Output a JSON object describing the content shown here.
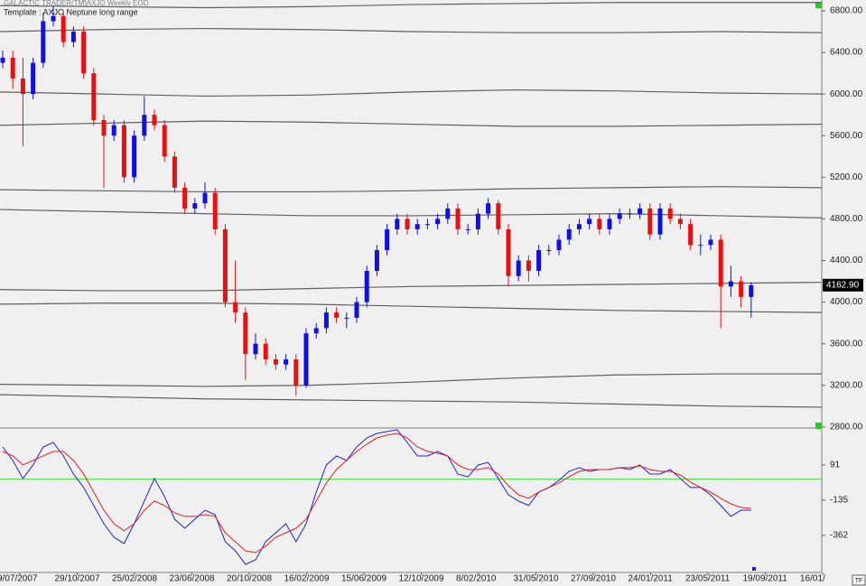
{
  "header": {
    "app": "GALACTIC TRADER(TM)",
    "symbol": "^AXJO Weekly EOD",
    "template": "Template : AXJO Neptune long range",
    "corner": "TF"
  },
  "chart_data": [
    {
      "type": "candlestick",
      "ylim": [
        2790,
        6904
      ],
      "yticks": [
        {
          "value": 2800,
          "label": "2800.00"
        },
        {
          "value": 3200,
          "label": "3200.00"
        },
        {
          "value": 3600,
          "label": "3600.00"
        },
        {
          "value": 4000,
          "label": "4000.00"
        },
        {
          "value": 4400,
          "label": "4400.00"
        },
        {
          "value": 4800,
          "label": "4800.00"
        },
        {
          "value": 5200,
          "label": "5200.00"
        },
        {
          "value": 5600,
          "label": "5600.00"
        },
        {
          "value": 6000,
          "label": "6000.00"
        },
        {
          "value": 6400,
          "label": "6400.00"
        },
        {
          "value": 6800,
          "label": "6800.00"
        }
      ],
      "xticks": [
        "9/07/2007",
        "29/10/2007",
        "25/02/2008",
        "23/06/2008",
        "20/10/2008",
        "16/02/2009",
        "15/06/2009",
        "12/10/2009",
        "8/02/2010",
        "31/05/2010",
        "27/09/2010",
        "24/01/2011",
        "23/05/2011",
        "19/09/2011",
        "16/01/"
      ],
      "up_color": "#1010e0",
      "down_color": "#e81010",
      "line_color": "#606060",
      "last_price": {
        "value": 4162.9,
        "label": "4162.90"
      },
      "open": [
        6300,
        6350,
        6150,
        6000,
        6300,
        6700,
        6750,
        6500,
        6600,
        6200,
        5750,
        5600,
        5700,
        5200,
        5600,
        5800,
        5700,
        5400,
        5100,
        4900,
        4950,
        5050,
        4700,
        4000,
        3900,
        3500,
        3600,
        3450,
        3400,
        3450,
        3200,
        3700,
        3750,
        3900,
        3850,
        3850,
        4000,
        4300,
        4500,
        4700,
        4800,
        4700,
        4750,
        4750,
        4800,
        4900,
        4700,
        4700,
        4850,
        4950,
        4700,
        4250,
        4400,
        4300,
        4500,
        4500,
        4600,
        4700,
        4750,
        4800,
        4700,
        4800,
        4850,
        4850,
        4900,
        4650,
        4900,
        4800,
        4750,
        4550,
        4550,
        4600,
        4150,
        4200,
        4050
      ],
      "high": [
        6420,
        6420,
        6350,
        6350,
        6780,
        6850,
        6780,
        6650,
        6650,
        6250,
        5800,
        5750,
        5750,
        5650,
        5980,
        5850,
        5750,
        5450,
        5150,
        5000,
        5150,
        5100,
        4750,
        4400,
        3950,
        3700,
        3650,
        3500,
        3500,
        3500,
        3750,
        3800,
        3950,
        3950,
        3900,
        4050,
        4350,
        4550,
        4750,
        4850,
        4850,
        4800,
        4800,
        4850,
        4950,
        4950,
        4750,
        4900,
        5000,
        4980,
        4750,
        4450,
        4450,
        4550,
        4550,
        4650,
        4750,
        4800,
        4850,
        4850,
        4850,
        4900,
        4900,
        4950,
        4950,
        4950,
        4950,
        4850,
        4800,
        4650,
        4650,
        4650,
        4350,
        4250,
        4190
      ],
      "low": [
        6250,
        6050,
        5500,
        5950,
        6250,
        6650,
        6450,
        6450,
        6150,
        5700,
        5100,
        5550,
        5150,
        5150,
        5550,
        5650,
        5350,
        5050,
        4850,
        4850,
        4900,
        4650,
        3950,
        3800,
        3250,
        3450,
        3400,
        3350,
        3350,
        3100,
        3180,
        3650,
        3700,
        3800,
        3750,
        3800,
        3950,
        4250,
        4450,
        4650,
        4650,
        4650,
        4700,
        4700,
        4750,
        4650,
        4650,
        4650,
        4800,
        4650,
        4150,
        4200,
        4200,
        4250,
        4450,
        4450,
        4550,
        4650,
        4700,
        4650,
        4650,
        4750,
        4800,
        4800,
        4600,
        4600,
        4750,
        4700,
        4500,
        4450,
        4500,
        3750,
        4050,
        3950,
        3850
      ],
      "close": [
        6350,
        6150,
        6000,
        6300,
        6700,
        6750,
        6500,
        6600,
        6200,
        5750,
        5600,
        5700,
        5200,
        5600,
        5800,
        5700,
        5400,
        5100,
        4900,
        4950,
        5050,
        4700,
        4000,
        3900,
        3500,
        3600,
        3450,
        3400,
        3450,
        3200,
        3700,
        3750,
        3900,
        3850,
        3850,
        4000,
        4300,
        4500,
        4700,
        4800,
        4700,
        4750,
        4750,
        4800,
        4900,
        4700,
        4700,
        4850,
        4950,
        4700,
        4250,
        4400,
        4300,
        4500,
        4500,
        4600,
        4700,
        4750,
        4800,
        4700,
        4800,
        4850,
        4850,
        4900,
        4650,
        4900,
        4800,
        4750,
        4550,
        4550,
        4600,
        4150,
        4200,
        4050,
        4162.9
      ],
      "overlay_lines": [
        {
          "values": [
            6850,
            6840,
            6830,
            6840,
            6860,
            6870,
            6880,
            6880,
            6880
          ]
        },
        {
          "values": [
            6600,
            6620,
            6630,
            6620,
            6600,
            6590,
            6590,
            6600,
            6590
          ]
        },
        {
          "values": [
            6020,
            6000,
            5980,
            5990,
            6020,
            6040,
            6030,
            6010,
            6000
          ]
        },
        {
          "values": [
            5700,
            5720,
            5740,
            5730,
            5710,
            5690,
            5690,
            5700,
            5710
          ]
        },
        {
          "values": [
            5080,
            5070,
            5060,
            5060,
            5070,
            5090,
            5100,
            5110,
            5100
          ]
        },
        {
          "values": [
            4890,
            4870,
            4850,
            4830,
            4830,
            4840,
            4850,
            4830,
            4810
          ]
        },
        {
          "values": [
            4120,
            4110,
            4110,
            4130,
            4150,
            4160,
            4170,
            4180,
            4190
          ]
        },
        {
          "values": [
            3980,
            3990,
            3990,
            3980,
            3960,
            3940,
            3920,
            3910,
            3900
          ]
        },
        {
          "values": [
            3210,
            3200,
            3190,
            3200,
            3230,
            3270,
            3300,
            3310,
            3310
          ]
        },
        {
          "values": [
            3110,
            3090,
            3070,
            3060,
            3050,
            3040,
            3020,
            3000,
            2990
          ]
        }
      ]
    },
    {
      "type": "line",
      "ylim": [
        -589,
        329
      ],
      "yticks": [
        91,
        -135,
        -362
      ],
      "hline": 0,
      "hline_color": "#40e040",
      "series": [
        {
          "color": "#2020e0",
          "values": [
            207,
            120,
            4,
            91,
            207,
            236,
            149,
            33,
            -54,
            -170,
            -287,
            -374,
            -414,
            -287,
            -141,
            4,
            -112,
            -258,
            -316,
            -258,
            -200,
            -229,
            -403,
            -461,
            -548,
            -519,
            -403,
            -345,
            -287,
            -403,
            -287,
            -83,
            91,
            149,
            120,
            207,
            265,
            294,
            306,
            318,
            236,
            149,
            149,
            178,
            149,
            33,
            15,
            91,
            108,
            4,
            -101,
            -141,
            -170,
            -83,
            -54,
            -8,
            50,
            74,
            50,
            62,
            62,
            74,
            62,
            91,
            33,
            33,
            62,
            4,
            -54,
            -54,
            -101,
            -170,
            -240,
            -200,
            -200
          ]
        },
        {
          "color": "#e02020",
          "values": [
            178,
            149,
            91,
            120,
            149,
            178,
            178,
            120,
            33,
            -83,
            -200,
            -287,
            -333,
            -287,
            -200,
            -141,
            -170,
            -217,
            -240,
            -240,
            -229,
            -240,
            -345,
            -403,
            -461,
            -473,
            -432,
            -374,
            -345,
            -316,
            -258,
            -141,
            -25,
            62,
            120,
            178,
            225,
            265,
            283,
            294,
            265,
            207,
            178,
            167,
            149,
            91,
            62,
            62,
            74,
            33,
            -43,
            -101,
            -124,
            -83,
            -54,
            -25,
            15,
            50,
            62,
            62,
            62,
            74,
            74,
            85,
            62,
            50,
            50,
            27,
            -19,
            -54,
            -83,
            -124,
            -159,
            -182,
            -188
          ]
        }
      ]
    }
  ]
}
